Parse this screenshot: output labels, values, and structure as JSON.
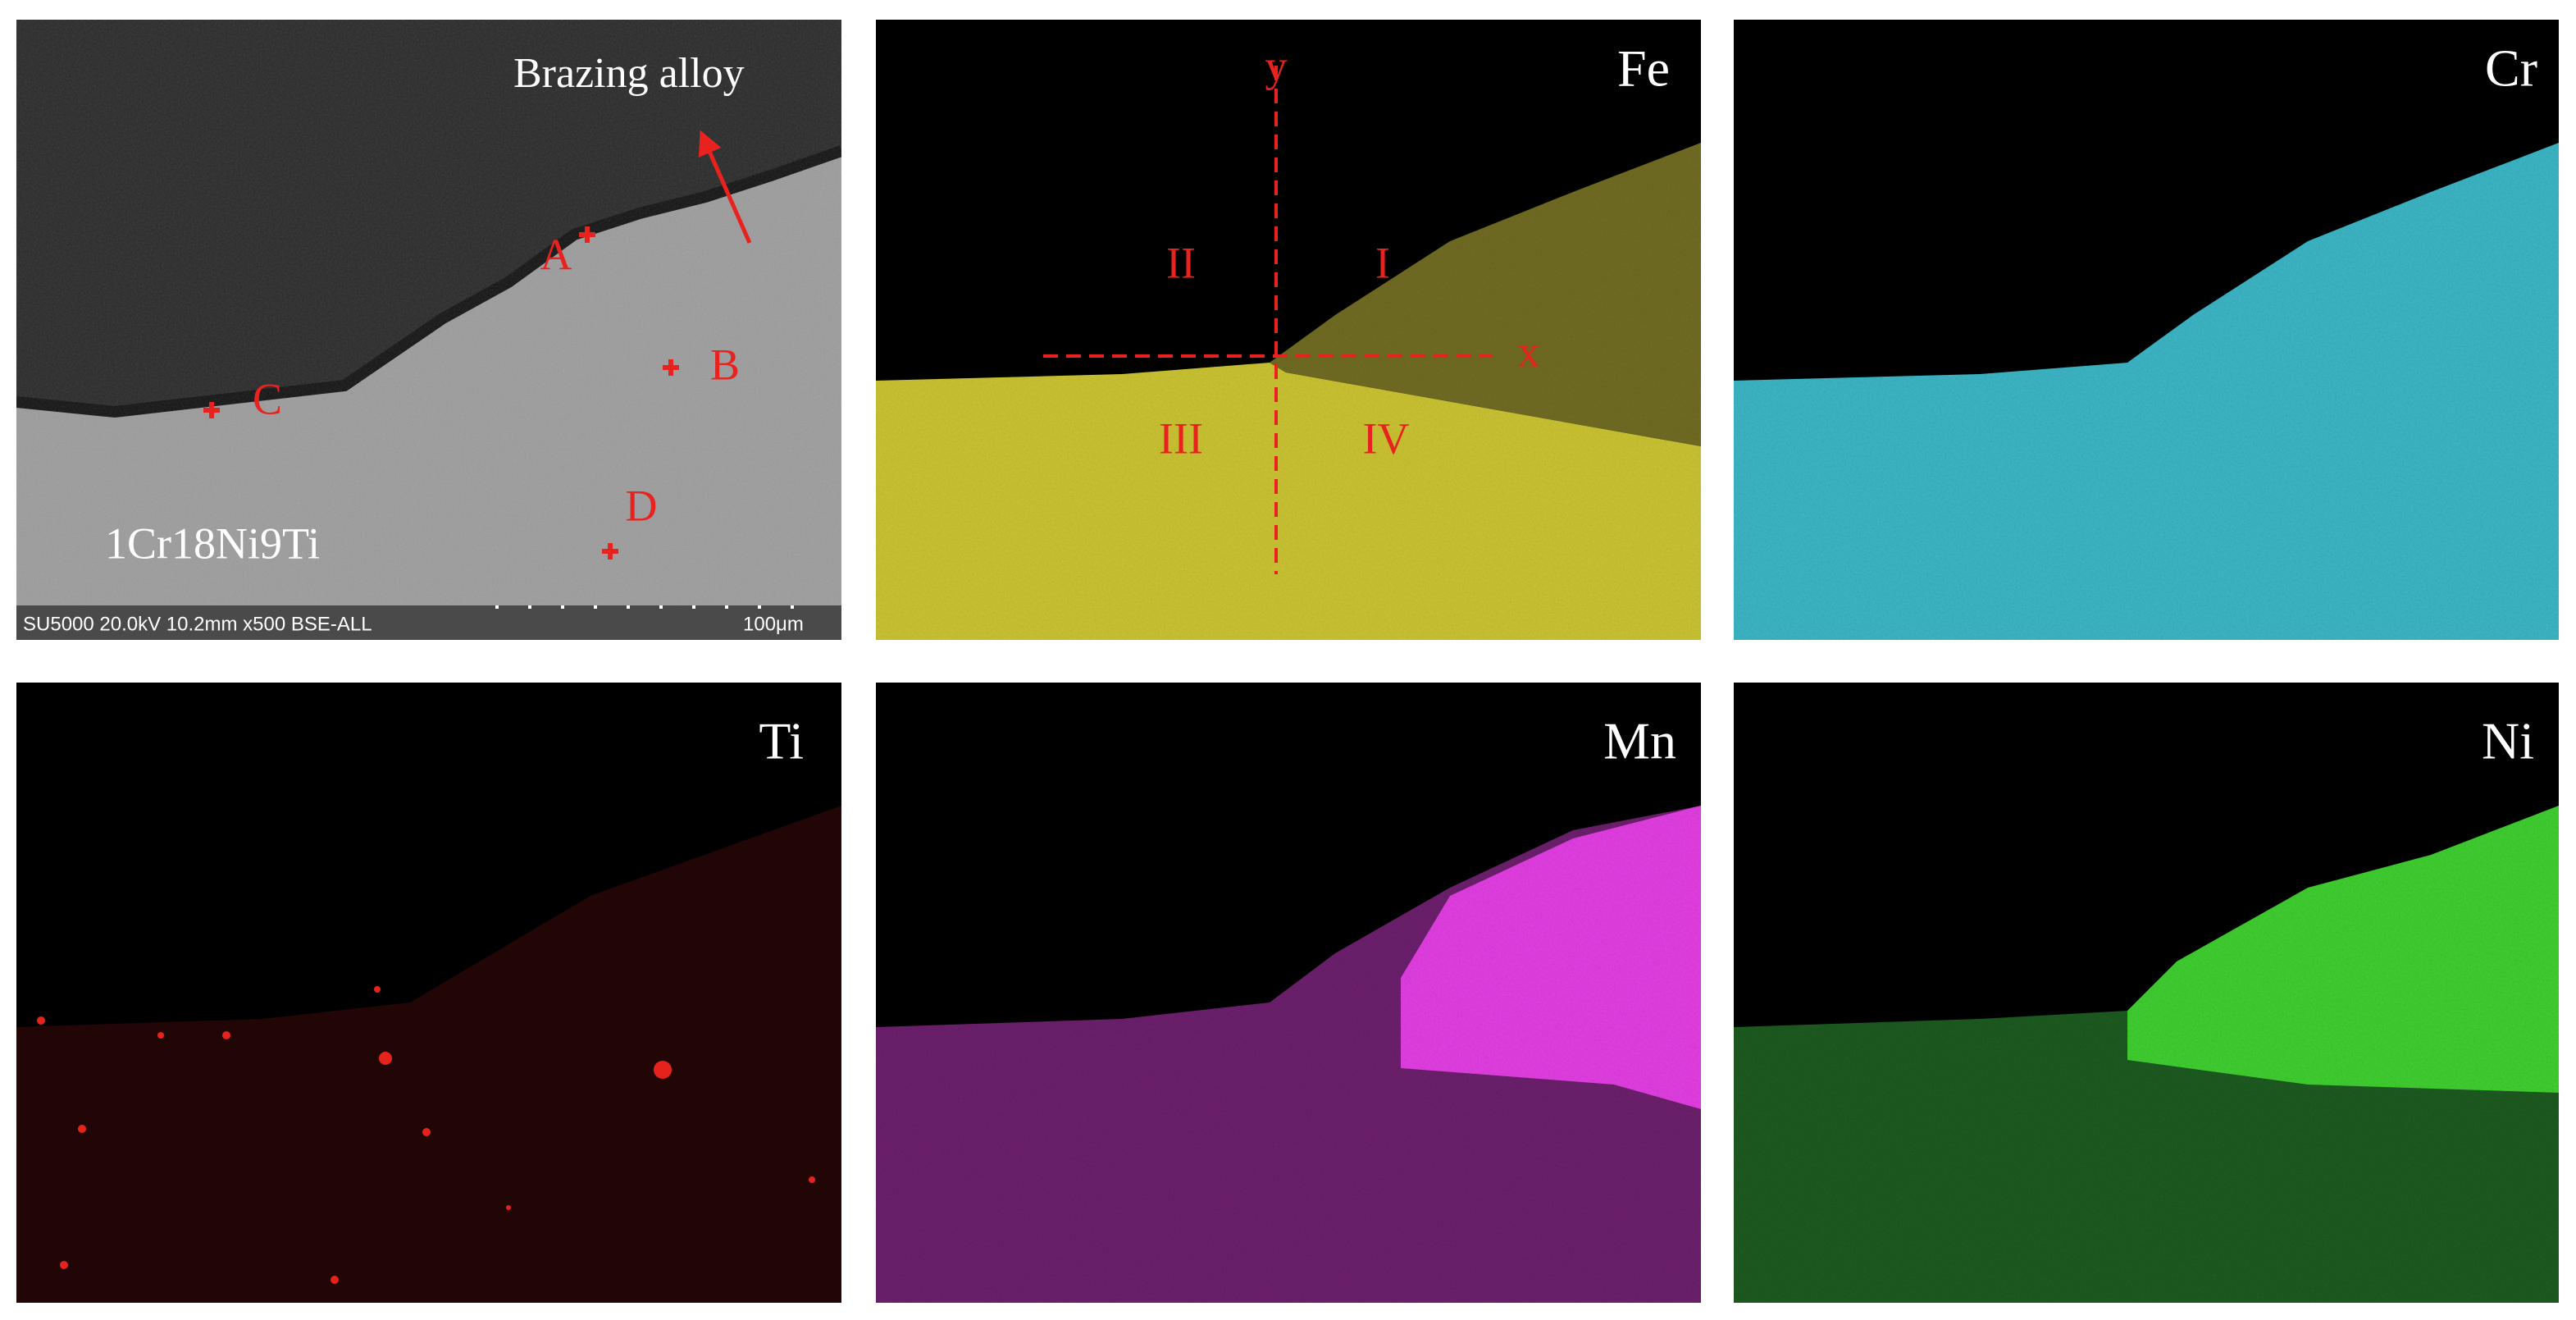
{
  "sem": {
    "annotation": "Brazing alloy",
    "points": [
      "A",
      "B",
      "C",
      "D"
    ],
    "material": "1Cr18Ni9Ti",
    "info": "SU5000 20.0kV 10.2mm x500 BSE-ALL",
    "scale": "100μm"
  },
  "fe_overlay": {
    "axes": [
      "y",
      "x"
    ],
    "regions": [
      "I",
      "II",
      "III",
      "IV"
    ]
  },
  "maps": [
    {
      "element": "Fe"
    },
    {
      "element": "Cr"
    },
    {
      "element": "Ti"
    },
    {
      "element": "Mn"
    },
    {
      "element": "Ni"
    }
  ]
}
